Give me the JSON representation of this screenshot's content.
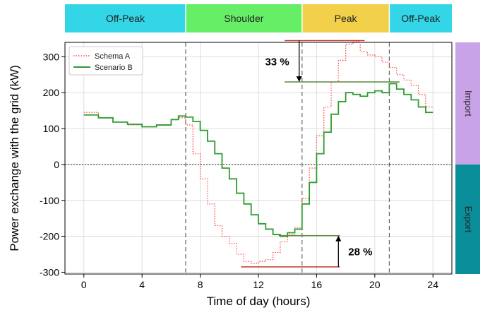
{
  "chart_data": {
    "type": "line",
    "xlabel": "Time of day (hours)",
    "ylabel": "Power exchange with the grid (kW)",
    "xlim": [
      -1.3,
      25.3
    ],
    "ylim": [
      -305,
      340
    ],
    "x_ticks": [
      0,
      4,
      8,
      12,
      16,
      20,
      24
    ],
    "y_ticks": [
      -300,
      -200,
      -100,
      0,
      100,
      200,
      300
    ],
    "grid": true,
    "legend_position": "top-left",
    "periods": [
      {
        "label": "Off-Peak",
        "start": -1.3,
        "end": 7,
        "color": "#33d6e6"
      },
      {
        "label": "Shoulder",
        "start": 7,
        "end": 15,
        "color": "#66ee66"
      },
      {
        "label": "Peak",
        "start": 15,
        "end": 21,
        "color": "#f2d04a"
      },
      {
        "label": "Off-Peak",
        "start": 21,
        "end": 25.3,
        "color": "#33d6e6"
      }
    ],
    "period_boundaries": [
      7,
      15,
      21
    ],
    "side_labels": [
      {
        "label": "Import",
        "from": 0,
        "to": 340,
        "color": "#c9a3e8"
      },
      {
        "label": "Export",
        "from": -305,
        "to": 0,
        "color": "#0a8f9a"
      }
    ],
    "annotations": [
      {
        "text": "33 %",
        "arrow_from": 345,
        "arrow_to": 230,
        "x": 14.8,
        "direction": "down",
        "ref_lines": [
          {
            "y": 345,
            "x_start": 13.8,
            "x_end": 19.3,
            "color": "#c0392b"
          },
          {
            "y": 230,
            "x_start": 13.8,
            "x_end": 21.7,
            "color": "#5a8a3a"
          }
        ]
      },
      {
        "text": "28 %",
        "arrow_from": -285,
        "arrow_to": -198,
        "x": 17.5,
        "direction": "up",
        "ref_lines": [
          {
            "y": -285,
            "x_start": 10.8,
            "x_end": 17.6,
            "color": "#c0392b"
          },
          {
            "y": -198,
            "x_start": 13.4,
            "x_end": 17.6,
            "color": "#5a8a3a"
          }
        ]
      }
    ],
    "series": [
      {
        "name": "Schema A",
        "color": "#ff4d4d",
        "style": "dotted",
        "x": [
          0,
          1,
          2,
          3,
          4,
          5,
          6,
          6.5,
          7,
          7.5,
          8,
          8.5,
          9,
          9.5,
          10,
          10.5,
          11,
          11.5,
          12,
          12.5,
          13,
          13.5,
          14,
          14.5,
          15,
          15.5,
          16,
          16.5,
          17,
          17.5,
          18,
          18.5,
          19,
          19.5,
          20,
          20.5,
          21,
          21.5,
          22,
          22.5,
          23,
          23.5
        ],
        "values": [
          145,
          130,
          118,
          110,
          105,
          110,
          125,
          130,
          110,
          30,
          -40,
          -110,
          -170,
          -200,
          -220,
          -250,
          -270,
          -275,
          -270,
          -265,
          -245,
          -215,
          -195,
          -175,
          -95,
          -10,
          80,
          160,
          230,
          290,
          335,
          342,
          315,
          305,
          300,
          285,
          270,
          250,
          235,
          220,
          195,
          160
        ]
      },
      {
        "name": "Scenario B",
        "color": "#2e9b2e",
        "style": "solid",
        "x": [
          0,
          1,
          2,
          3,
          4,
          5,
          6,
          6.5,
          7,
          7.5,
          8,
          8.5,
          9,
          9.5,
          10,
          10.5,
          11,
          11.5,
          12,
          12.5,
          13,
          13.5,
          14,
          14.5,
          15,
          15.5,
          16,
          16.5,
          17,
          17.5,
          18,
          18.5,
          19,
          19.5,
          20,
          20.5,
          21,
          21.5,
          22,
          22.5,
          23,
          23.5
        ],
        "values": [
          138,
          130,
          118,
          112,
          105,
          110,
          125,
          135,
          132,
          120,
          95,
          65,
          30,
          -10,
          -40,
          -80,
          -110,
          -140,
          -165,
          -180,
          -195,
          -200,
          -190,
          -180,
          -110,
          -50,
          30,
          90,
          140,
          175,
          200,
          195,
          190,
          200,
          205,
          200,
          225,
          210,
          195,
          180,
          160,
          145
        ]
      }
    ]
  }
}
